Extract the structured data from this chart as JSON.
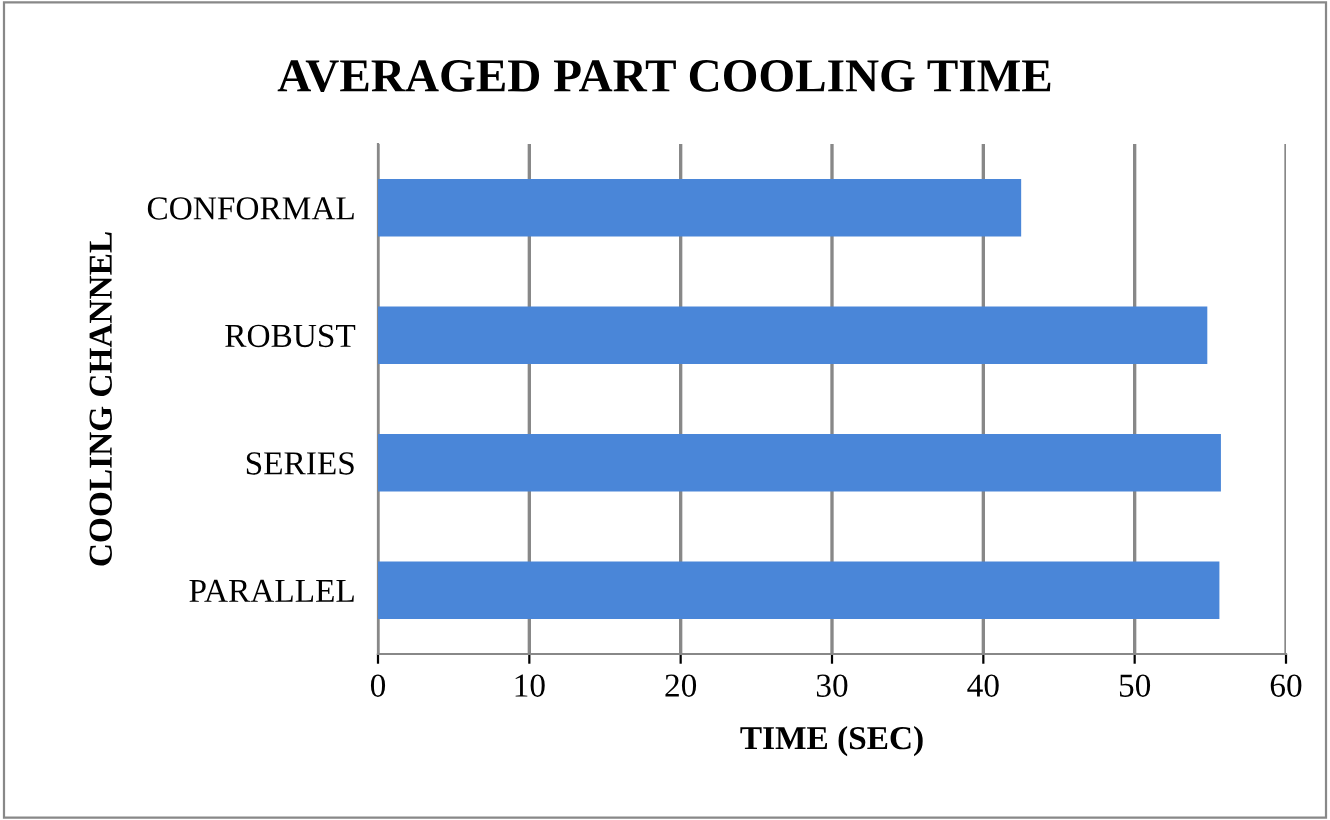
{
  "chart_data": {
    "type": "bar",
    "orientation": "horizontal",
    "title": "AVERAGED PART COOLING TIME",
    "xlabel": "TIME (SEC)",
    "ylabel": "COOLING CHANNEL",
    "categories": [
      "CONFORMAL",
      "ROBUST",
      "SERIES",
      "PARALLEL"
    ],
    "values": [
      42.5,
      54.8,
      55.7,
      55.6
    ],
    "color": "#4a86d8",
    "xlim": [
      0,
      60
    ],
    "xticks": [
      0,
      10,
      20,
      30,
      40,
      50,
      60
    ],
    "grid": "x",
    "legend": false
  }
}
